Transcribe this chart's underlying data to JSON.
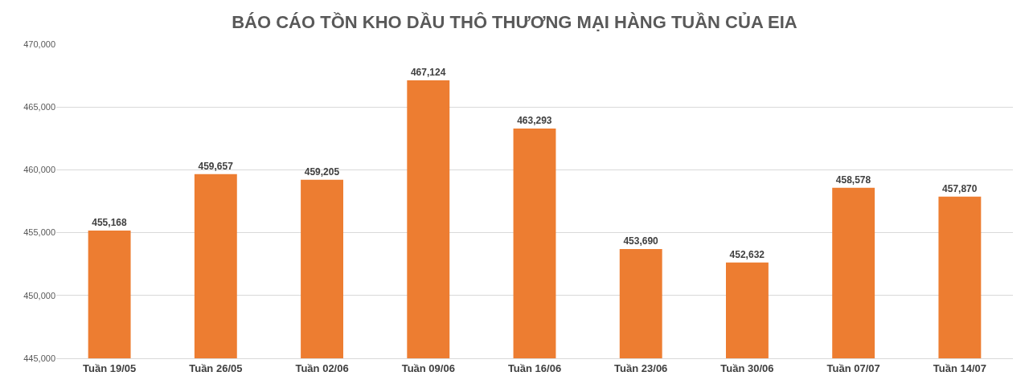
{
  "chart_data": {
    "type": "bar",
    "title": "BÁO CÁO TỒN KHO DẦU THÔ THƯƠNG MẠI HÀNG TUẦN CỦA EIA",
    "categories": [
      "Tuần 19/05",
      "Tuần 26/05",
      "Tuần 02/06",
      "Tuần 09/06",
      "Tuần 16/06",
      "Tuần 23/06",
      "Tuần 30/06",
      "Tuần 07/07",
      "Tuần 14/07"
    ],
    "values": [
      455168,
      459657,
      459205,
      467124,
      463293,
      453690,
      452632,
      458578,
      457870
    ],
    "color": "#ed7d31",
    "ylim": [
      445000,
      470000
    ],
    "yticks": [
      {
        "value": 445000,
        "label": "445,000"
      },
      {
        "value": 450000,
        "label": "450,000"
      },
      {
        "value": 455000,
        "label": "455,000"
      },
      {
        "value": 460000,
        "label": "460,000"
      },
      {
        "value": 465000,
        "label": "465,000"
      },
      {
        "value": 470000,
        "label": "470,000"
      }
    ],
    "value_labels": [
      "455,168",
      "459,657",
      "459,205",
      "467,124",
      "463,293",
      "453,690",
      "452,632",
      "458,578",
      "457,870"
    ],
    "grid": "y"
  }
}
